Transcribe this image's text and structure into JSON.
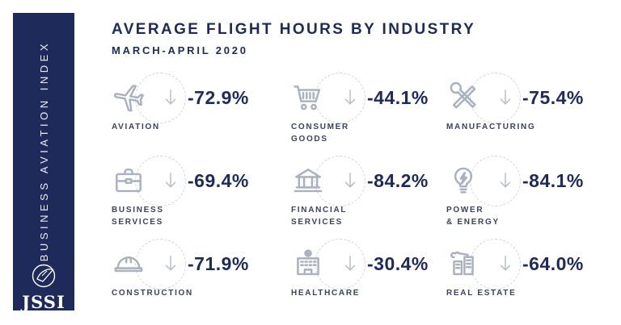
{
  "sidebar": {
    "vertical_label": "BUSINESS AVIATION INDEX",
    "logo_text": "JSSI"
  },
  "header": {
    "title": "AVERAGE FLIGHT HOURS BY INDUSTRY",
    "subtitle": "MARCH-APRIL 2020"
  },
  "industries": [
    {
      "label": "AVIATION",
      "value": "-72.9%",
      "icon": "airplane-icon"
    },
    {
      "label": "CONSUMER\nGOODS",
      "value": "-44.1%",
      "icon": "shopping-cart-icon"
    },
    {
      "label": "MANUFACTURING",
      "value": "-75.4%",
      "icon": "tools-icon"
    },
    {
      "label": "BUSINESS\nSERVICES",
      "value": "-69.4%",
      "icon": "briefcase-icon"
    },
    {
      "label": "FINANCIAL\nSERVICES",
      "value": "-84.2%",
      "icon": "bank-icon"
    },
    {
      "label": "POWER\n& ENERGY",
      "value": "-84.1%",
      "icon": "lightbulb-bolt-icon"
    },
    {
      "label": "CONSTRUCTION",
      "value": "-71.9%",
      "icon": "hard-hat-icon"
    },
    {
      "label": "HEALTHCARE",
      "value": "-30.4%",
      "icon": "hospital-icon"
    },
    {
      "label": "REAL ESTATE",
      "value": "-64.0%",
      "icon": "buildings-crane-icon"
    }
  ],
  "chart_data": {
    "type": "table",
    "title": "AVERAGE FLIGHT HOURS BY INDUSTRY",
    "subtitle": "MARCH-APRIL 2020",
    "categories": [
      "Aviation",
      "Consumer Goods",
      "Manufacturing",
      "Business Services",
      "Financial Services",
      "Power & Energy",
      "Construction",
      "Healthcare",
      "Real Estate"
    ],
    "values_pct_change": [
      -72.9,
      -44.1,
      -75.4,
      -69.4,
      -84.2,
      -84.1,
      -71.9,
      -30.4,
      -64.0
    ],
    "direction": "down",
    "source_brand": "JSSI Business Aviation Index"
  },
  "colors": {
    "navy": "#1e2a5a",
    "icon_gray": "#a9b0be",
    "arrow_gray": "#b6bcc6",
    "dashed_circle_gray": "#d2d5dc",
    "label_gray_navy": "#3a4261"
  }
}
